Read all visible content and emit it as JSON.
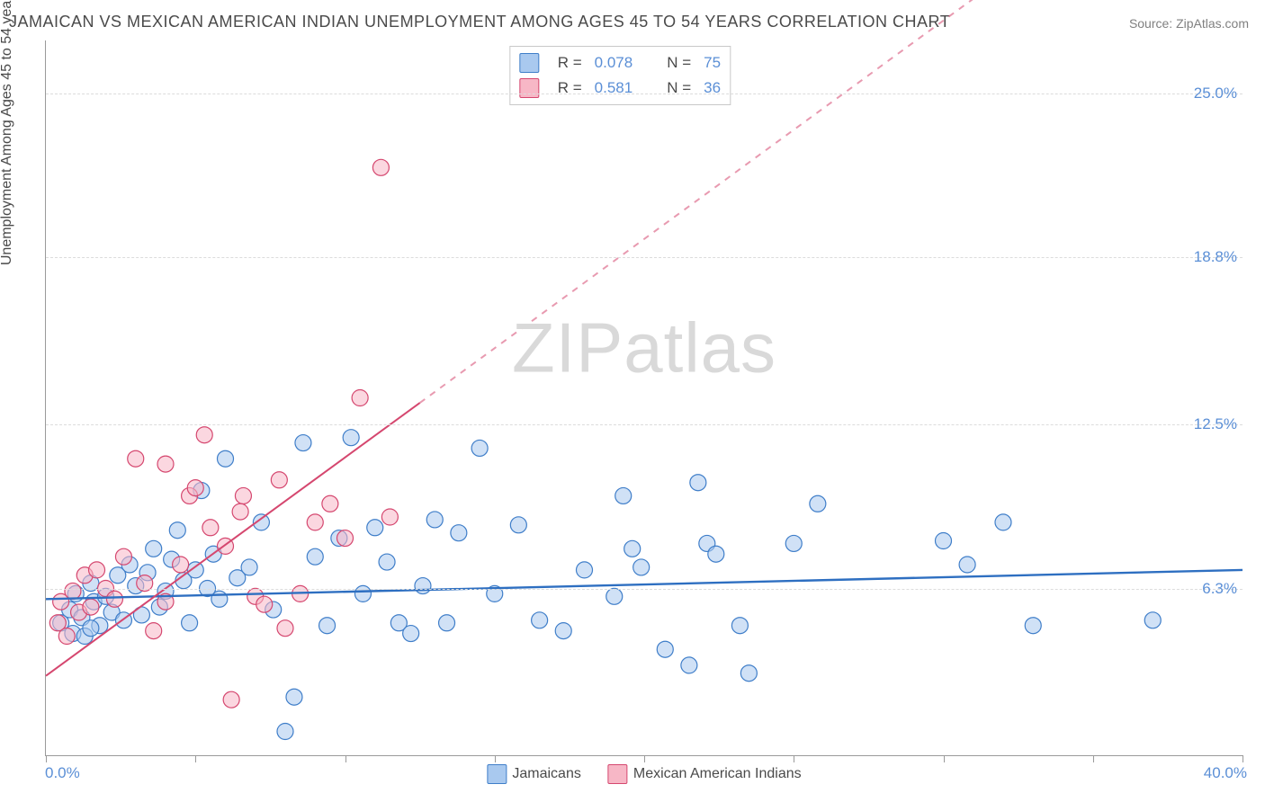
{
  "title": "JAMAICAN VS MEXICAN AMERICAN INDIAN UNEMPLOYMENT AMONG AGES 45 TO 54 YEARS CORRELATION CHART",
  "source": "Source: ZipAtlas.com",
  "y_axis_title": "Unemployment Among Ages 45 to 54 years",
  "watermark": {
    "zip": "ZIP",
    "atlas": "atlas"
  },
  "chart": {
    "type": "scatter",
    "background_color": "#ffffff",
    "grid_color": "#dcdcdc",
    "axis_color": "#9a9a9a",
    "label_color": "#5b8fd6",
    "xlim": [
      0.0,
      40.0
    ],
    "ylim": [
      0.0,
      27.0
    ],
    "x_min_label": "0.0%",
    "x_max_label": "40.0%",
    "y_ticks": [
      {
        "value": 6.3,
        "label": "6.3%"
      },
      {
        "value": 12.5,
        "label": "12.5%"
      },
      {
        "value": 18.8,
        "label": "18.8%"
      },
      {
        "value": 25.0,
        "label": "25.0%"
      }
    ],
    "x_tick_positions_pct": [
      0,
      12.5,
      25,
      37.5,
      50,
      62.5,
      75,
      87.5,
      100
    ],
    "point_radius": 9,
    "point_stroke_width": 1.2,
    "series": [
      {
        "key": "jamaicans",
        "label": "Jamaicans",
        "fill": "#a9c9ef",
        "fill_opacity": 0.55,
        "stroke": "#3f7ec9",
        "swatch_fill": "#a9c9ef",
        "swatch_border": "#3f7ec9",
        "R": "0.078",
        "N": "75",
        "trend": {
          "x1": 0.0,
          "y1": 5.9,
          "x2": 40.0,
          "y2": 7.0,
          "color": "#2e6fc1",
          "width": 2.4,
          "dashed_after_x": null
        },
        "points": [
          [
            0.5,
            5.0
          ],
          [
            0.8,
            5.5
          ],
          [
            0.9,
            4.6
          ],
          [
            1.0,
            6.1
          ],
          [
            1.2,
            5.2
          ],
          [
            1.3,
            4.5
          ],
          [
            1.5,
            6.5
          ],
          [
            1.6,
            5.8
          ],
          [
            1.8,
            4.9
          ],
          [
            2.0,
            6.0
          ],
          [
            2.2,
            5.4
          ],
          [
            2.4,
            6.8
          ],
          [
            2.6,
            5.1
          ],
          [
            2.8,
            7.2
          ],
          [
            3.0,
            6.4
          ],
          [
            3.2,
            5.3
          ],
          [
            3.4,
            6.9
          ],
          [
            3.6,
            7.8
          ],
          [
            3.8,
            5.6
          ],
          [
            4.0,
            6.2
          ],
          [
            4.2,
            7.4
          ],
          [
            4.4,
            8.5
          ],
          [
            4.6,
            6.6
          ],
          [
            4.8,
            5.0
          ],
          [
            5.0,
            7.0
          ],
          [
            5.2,
            10.0
          ],
          [
            5.4,
            6.3
          ],
          [
            5.6,
            7.6
          ],
          [
            5.8,
            5.9
          ],
          [
            6.0,
            11.2
          ],
          [
            6.4,
            6.7
          ],
          [
            6.8,
            7.1
          ],
          [
            7.2,
            8.8
          ],
          [
            7.6,
            5.5
          ],
          [
            1.5,
            4.8
          ],
          [
            8.0,
            0.9
          ],
          [
            8.3,
            2.2
          ],
          [
            8.6,
            11.8
          ],
          [
            9.0,
            7.5
          ],
          [
            9.4,
            4.9
          ],
          [
            9.8,
            8.2
          ],
          [
            10.2,
            12.0
          ],
          [
            10.6,
            6.1
          ],
          [
            11.0,
            8.6
          ],
          [
            11.4,
            7.3
          ],
          [
            11.8,
            5.0
          ],
          [
            12.2,
            4.6
          ],
          [
            12.6,
            6.4
          ],
          [
            13.0,
            8.9
          ],
          [
            13.4,
            5.0
          ],
          [
            13.8,
            8.4
          ],
          [
            14.5,
            11.6
          ],
          [
            15.0,
            6.1
          ],
          [
            15.8,
            8.7
          ],
          [
            16.5,
            5.1
          ],
          [
            17.3,
            4.7
          ],
          [
            18.0,
            7.0
          ],
          [
            19.0,
            6.0
          ],
          [
            19.3,
            9.8
          ],
          [
            19.6,
            7.8
          ],
          [
            19.9,
            7.1
          ],
          [
            20.7,
            4.0
          ],
          [
            21.5,
            3.4
          ],
          [
            21.8,
            10.3
          ],
          [
            22.1,
            8.0
          ],
          [
            22.4,
            7.6
          ],
          [
            23.2,
            4.9
          ],
          [
            25.0,
            8.0
          ],
          [
            25.8,
            9.5
          ],
          [
            30.0,
            8.1
          ],
          [
            30.8,
            7.2
          ],
          [
            32.0,
            8.8
          ],
          [
            33.0,
            4.9
          ],
          [
            37.0,
            5.1
          ],
          [
            23.5,
            3.1
          ]
        ]
      },
      {
        "key": "mexican_american_indians",
        "label": "Mexican American Indians",
        "fill": "#f7b7c6",
        "fill_opacity": 0.55,
        "stroke": "#d5476f",
        "swatch_fill": "#f7b7c6",
        "swatch_border": "#d5476f",
        "R": "0.581",
        "N": "36",
        "trend": {
          "x1": 0.0,
          "y1": 3.0,
          "x2": 40.0,
          "y2": 36.0,
          "color": "#d5476f",
          "width": 2.0,
          "dashed_after_x": 12.5
        },
        "points": [
          [
            0.4,
            5.0
          ],
          [
            0.5,
            5.8
          ],
          [
            0.7,
            4.5
          ],
          [
            0.9,
            6.2
          ],
          [
            1.1,
            5.4
          ],
          [
            1.3,
            6.8
          ],
          [
            1.5,
            5.6
          ],
          [
            1.7,
            7.0
          ],
          [
            2.0,
            6.3
          ],
          [
            2.3,
            5.9
          ],
          [
            2.6,
            7.5
          ],
          [
            3.0,
            11.2
          ],
          [
            3.3,
            6.5
          ],
          [
            3.6,
            4.7
          ],
          [
            4.0,
            5.8
          ],
          [
            4.0,
            11.0
          ],
          [
            4.5,
            7.2
          ],
          [
            4.8,
            9.8
          ],
          [
            5.0,
            10.1
          ],
          [
            5.3,
            12.1
          ],
          [
            5.5,
            8.6
          ],
          [
            6.0,
            7.9
          ],
          [
            6.2,
            2.1
          ],
          [
            6.5,
            9.2
          ],
          [
            6.6,
            9.8
          ],
          [
            7.0,
            6.0
          ],
          [
            7.3,
            5.7
          ],
          [
            7.8,
            10.4
          ],
          [
            8.0,
            4.8
          ],
          [
            8.5,
            6.1
          ],
          [
            9.0,
            8.8
          ],
          [
            9.5,
            9.5
          ],
          [
            10.0,
            8.2
          ],
          [
            10.5,
            13.5
          ],
          [
            11.2,
            22.2
          ],
          [
            11.5,
            9.0
          ]
        ]
      }
    ]
  },
  "stat_legend": {
    "R_label": "R =",
    "N_label": "N ="
  }
}
